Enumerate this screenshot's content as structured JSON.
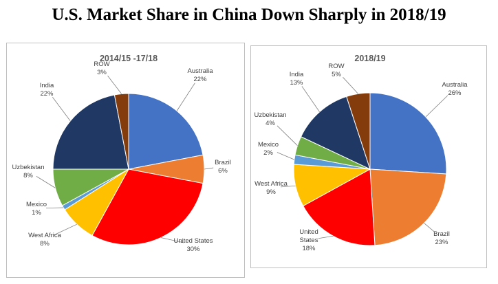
{
  "title": "U.S. Market Share in China Down Sharply in 2018/19",
  "chart_data": [
    {
      "type": "pie",
      "title": "2014/15 -17/18",
      "slices": [
        {
          "name": "Australia",
          "value": 22,
          "label": "22%",
          "color": "#4472c4"
        },
        {
          "name": "Brazil",
          "value": 6,
          "label": "6%",
          "color": "#ed7d31"
        },
        {
          "name": "United States",
          "value": 30,
          "label": "30%",
          "color": "#ff0000"
        },
        {
          "name": "West Africa",
          "value": 8,
          "label": "8%",
          "color": "#ffc000"
        },
        {
          "name": "Mexico",
          "value": 1,
          "label": "1%",
          "color": "#5b9bd5"
        },
        {
          "name": "Uzbekistan",
          "value": 8,
          "label": "8%",
          "color": "#70ad47"
        },
        {
          "name": "India",
          "value": 22,
          "label": "22%",
          "color": "#1f3864"
        },
        {
          "name": "ROW",
          "value": 3,
          "label": "3%",
          "color": "#843c0c"
        }
      ]
    },
    {
      "type": "pie",
      "title": "2018/19",
      "slices": [
        {
          "name": "Australia",
          "value": 26,
          "label": "26%",
          "color": "#4472c4"
        },
        {
          "name": "Brazil",
          "value": 23,
          "label": "23%",
          "color": "#ed7d31"
        },
        {
          "name": "United States",
          "value": 18,
          "label": "18%",
          "color": "#ff0000"
        },
        {
          "name": "West Africa",
          "value": 9,
          "label": "9%",
          "color": "#ffc000"
        },
        {
          "name": "Mexico",
          "value": 2,
          "label": "2%",
          "color": "#5b9bd5"
        },
        {
          "name": "Uzbekistan",
          "value": 4,
          "label": "4%",
          "color": "#70ad47"
        },
        {
          "name": "India",
          "value": 13,
          "label": "13%",
          "color": "#1f3864"
        },
        {
          "name": "ROW",
          "value": 5,
          "label": "5%",
          "color": "#843c0c"
        }
      ]
    }
  ]
}
